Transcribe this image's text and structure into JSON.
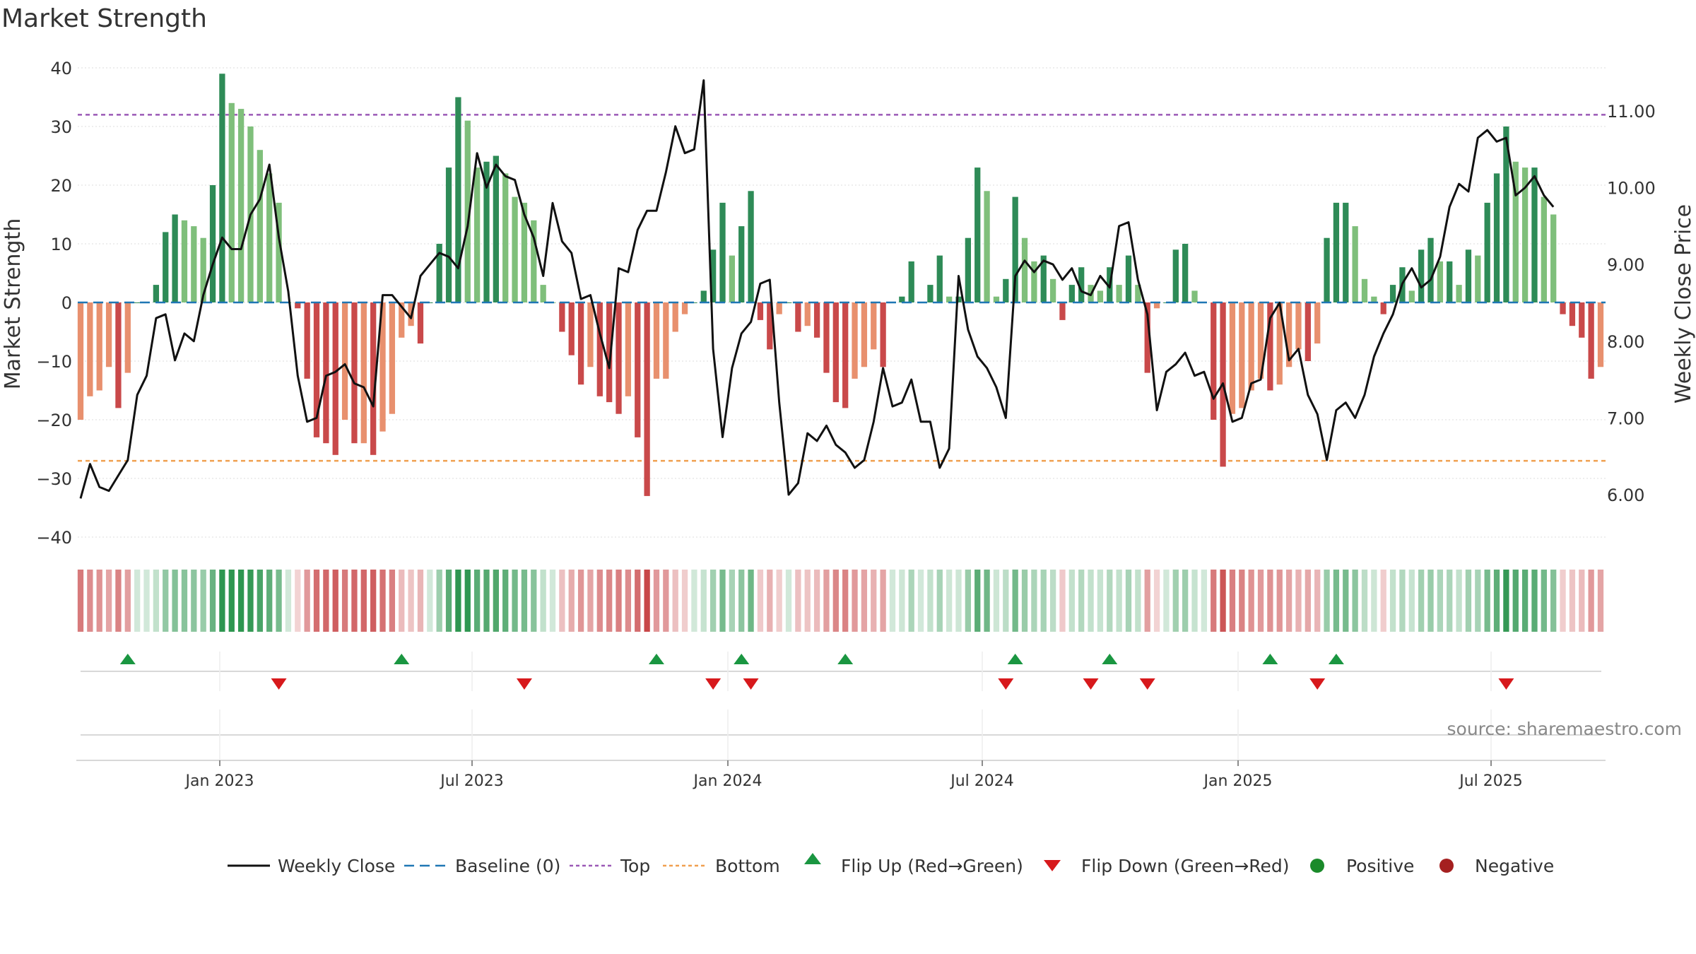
{
  "chart_data": {
    "type": "bar",
    "title": "Market Strength",
    "ylabel_left": "Market Strength",
    "ylabel_right": "Weekly Close Price",
    "ylim_left": [
      -40,
      40
    ],
    "ylim_right": [
      5.5,
      11.5
    ],
    "yticks_left": [
      "40",
      "30",
      "20",
      "10",
      "0",
      "−10",
      "−20",
      "−30",
      "−40"
    ],
    "yticks_right": [
      "11.00",
      "10.00",
      "9.00",
      "8.00",
      "7.00",
      "6.00"
    ],
    "x_tick_labels": [
      "Jan 2023",
      "Jul 2023",
      "Jan 2024",
      "Jul 2024",
      "Jan 2025",
      "Jul 2025"
    ],
    "top_line": 32,
    "bottom_line": -27,
    "strength": [
      -20,
      -16,
      -15,
      -11,
      -18,
      -12,
      0,
      0,
      3,
      12,
      15,
      14,
      13,
      11,
      20,
      39,
      34,
      33,
      30,
      26,
      22,
      17,
      0,
      -1,
      -13,
      -23,
      -24,
      -26,
      -20,
      -24,
      -24,
      -26,
      -22,
      -19,
      -6,
      -4,
      -7,
      0,
      10,
      23,
      35,
      31,
      23,
      24,
      25,
      22,
      18,
      17,
      14,
      3,
      0,
      -5,
      -9,
      -14,
      -11,
      -16,
      -17,
      -19,
      -16,
      -23,
      -33,
      -13,
      -13,
      -5,
      -2,
      0,
      2,
      9,
      17,
      8,
      13,
      19,
      -3,
      -8,
      -2,
      0,
      -5,
      -4,
      -6,
      -12,
      -17,
      -18,
      -13,
      -11,
      -8,
      -11,
      0,
      1,
      7,
      0,
      3,
      8,
      1,
      1,
      11,
      23,
      19,
      1,
      4,
      18,
      11,
      7,
      8,
      4,
      -3,
      3,
      6,
      3,
      2,
      6,
      3,
      8,
      3,
      -12,
      -1,
      0,
      9,
      10,
      2,
      0,
      -20,
      -28,
      -19,
      -18,
      -15,
      -13,
      -15,
      -14,
      -11,
      -8,
      -10,
      -7,
      11,
      17,
      17,
      13,
      4,
      1,
      -2,
      3,
      6,
      2,
      9,
      11,
      7,
      7,
      3,
      9,
      8,
      17,
      22,
      30,
      24,
      23,
      23,
      18,
      15,
      -2,
      -4,
      -6,
      -13,
      -11
    ],
    "weekly_close": [
      5.95,
      6.4,
      6.1,
      6.05,
      6.25,
      6.45,
      7.3,
      7.55,
      8.3,
      8.35,
      7.75,
      8.1,
      8.0,
      8.6,
      9.0,
      9.35,
      9.2,
      9.2,
      9.65,
      9.85,
      10.3,
      9.35,
      8.65,
      7.55,
      6.95,
      7.0,
      7.55,
      7.6,
      7.7,
      7.45,
      7.4,
      7.15,
      8.6,
      8.6,
      8.45,
      8.3,
      8.85,
      9.0,
      9.15,
      9.1,
      8.95,
      9.5,
      10.45,
      10.0,
      10.3,
      10.15,
      10.1,
      9.65,
      9.35,
      8.85,
      9.8,
      9.3,
      9.15,
      8.55,
      8.6,
      8.1,
      7.65,
      8.95,
      8.9,
      9.45,
      9.7,
      9.7,
      10.2,
      10.8,
      10.45,
      10.5,
      11.4,
      7.9,
      6.75,
      7.65,
      8.1,
      8.25,
      8.75,
      8.8,
      7.2,
      6.0,
      6.15,
      6.8,
      6.7,
      6.9,
      6.65,
      6.55,
      6.35,
      6.45,
      6.95,
      7.65,
      7.15,
      7.2,
      7.5,
      6.95,
      6.95,
      6.35,
      6.6,
      8.85,
      8.15,
      7.8,
      7.65,
      7.4,
      7.0,
      8.85,
      9.05,
      8.9,
      9.05,
      9.0,
      8.8,
      8.95,
      8.65,
      8.6,
      8.85,
      8.7,
      9.5,
      9.55,
      8.8,
      8.35,
      7.1,
      7.6,
      7.7,
      7.85,
      7.55,
      7.6,
      7.25,
      7.45,
      6.95,
      7.0,
      7.45,
      7.5,
      8.3,
      8.5,
      7.75,
      7.9,
      7.3,
      7.05,
      6.45,
      7.1,
      7.2,
      7.0,
      7.3,
      7.8,
      8.1,
      8.35,
      8.75,
      8.95,
      8.7,
      8.8,
      9.1,
      9.75,
      10.05,
      9.95,
      10.65,
      10.75,
      10.6,
      10.65,
      9.9,
      10.0,
      10.15,
      9.9,
      9.75
    ],
    "flip_up_weeks": [
      5,
      34,
      61,
      70,
      81,
      99,
      109,
      126,
      133
    ],
    "flip_down_weeks": [
      21,
      47,
      67,
      71,
      98,
      107,
      113,
      131,
      151
    ],
    "legend": [
      "Weekly Close",
      "Baseline (0)",
      "Top",
      "Bottom",
      "Flip Up (Red→Green)",
      "Flip Down (Green→Red)",
      "Positive",
      "Negative"
    ],
    "source": "source: sharemaestro.com"
  },
  "colors": {
    "strong_green": "#2e8b57",
    "light_green": "#7fbf7b",
    "strong_red": "#c9494a",
    "light_red": "#e8906e",
    "top_line": "#9b59b6",
    "bottom_line": "#f0a050",
    "baseline": "#1f77b4",
    "close_line": "#111111",
    "flip_up": "#1a9641",
    "flip_down": "#d7191c",
    "positive": "#1a8a2a",
    "negative": "#a52020"
  }
}
